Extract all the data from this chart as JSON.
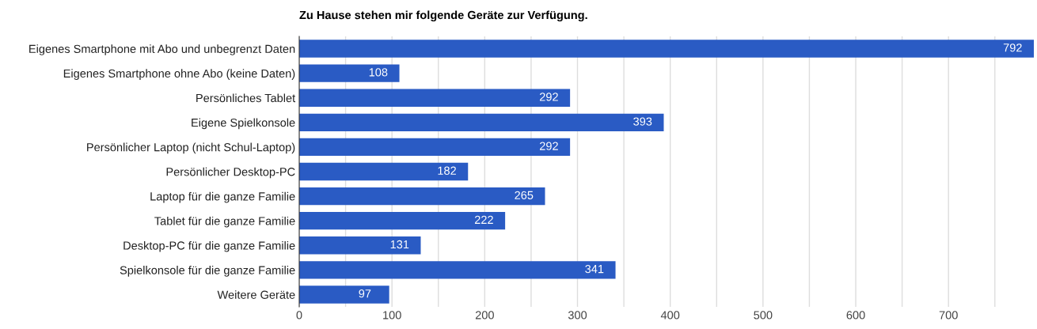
{
  "chart_data": {
    "type": "bar",
    "orientation": "horizontal",
    "title": "Zu Hause stehen mir folgende Geräte zur Verfügung.",
    "categories": [
      "Eigenes Smartphone mit Abo und unbegrenzt Daten",
      "Eigenes Smartphone ohne Abo (keine Daten)",
      "Persönliches Tablet",
      "Eigene Spielkonsole",
      "Persönlicher Laptop (nicht Schul-Laptop)",
      "Persönlicher Desktop-PC",
      "Laptop für die ganze Familie",
      "Tablet für die ganze Familie",
      "Desktop-PC für die ganze Familie",
      "Spielkonsole für die ganze Familie",
      "Weitere Geräte"
    ],
    "values": [
      792,
      108,
      292,
      393,
      292,
      182,
      265,
      222,
      131,
      341,
      97
    ],
    "color": "#2a5bc4",
    "data_labels": true,
    "grid": "x",
    "legend": false,
    "xlim": [
      0,
      792
    ],
    "xticks": [
      0,
      {
        "value": 50,
        "label": null
      },
      100,
      {
        "value": 150,
        "label": null
      },
      200,
      {
        "value": 250,
        "label": null
      },
      300,
      {
        "value": 350,
        "label": null
      },
      400,
      {
        "value": 450,
        "label": null
      },
      500,
      {
        "value": 550,
        "label": null
      },
      600,
      {
        "value": 650,
        "label": null
      },
      700,
      {
        "value": 750,
        "label": null
      }
    ]
  }
}
